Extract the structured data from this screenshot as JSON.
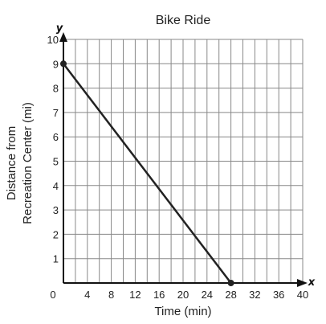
{
  "chart_data": {
    "type": "line",
    "title": "Bike Ride",
    "xlabel": "Time (min)",
    "ylabel_lines": [
      "Distance from",
      "Recreation Center (mi)"
    ],
    "x_axis_letter": "x",
    "y_axis_letter": "y",
    "xlim": [
      0,
      40
    ],
    "ylim": [
      0,
      10
    ],
    "x_grid_step": 2,
    "y_grid_step": 1,
    "x_tick_labels": [
      "0",
      "4",
      "8",
      "12",
      "16",
      "20",
      "24",
      "28",
      "32",
      "36",
      "40"
    ],
    "x_tick_values": [
      0,
      4,
      8,
      12,
      16,
      20,
      24,
      28,
      32,
      36,
      40
    ],
    "y_tick_labels": [
      "1",
      "2",
      "3",
      "4",
      "5",
      "6",
      "7",
      "8",
      "9",
      "10"
    ],
    "y_tick_values": [
      1,
      2,
      3,
      4,
      5,
      6,
      7,
      8,
      9,
      10
    ],
    "grid": true,
    "series": [
      {
        "points": [
          [
            0,
            9
          ],
          [
            28,
            0
          ]
        ]
      }
    ],
    "colors": {
      "line": "#222222",
      "grid": "#888888",
      "axis": "#111111"
    }
  }
}
